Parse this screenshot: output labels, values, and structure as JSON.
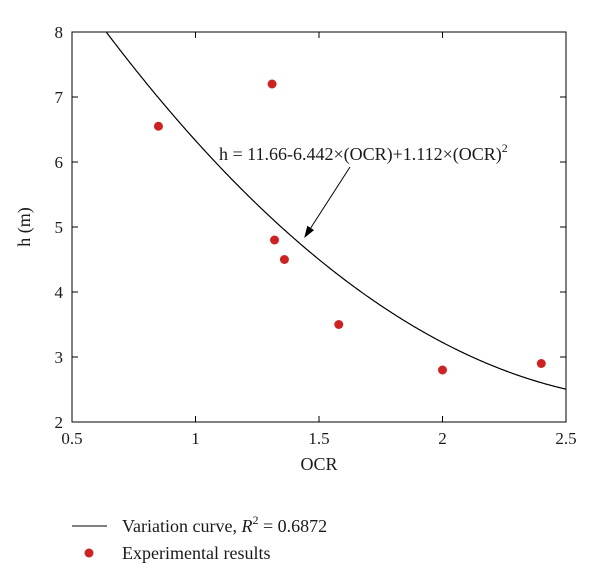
{
  "chart_data": {
    "type": "scatter",
    "xlabel": "OCR",
    "ylabel": "h (m)",
    "xlim": [
      0.5,
      2.5
    ],
    "ylim": [
      2,
      8
    ],
    "xticks": [
      0.5,
      1,
      1.5,
      2,
      2.5
    ],
    "xtick_labels": [
      "0.5",
      "1",
      "1.5",
      "2",
      "2.5"
    ],
    "yticks": [
      2,
      3,
      4,
      5,
      6,
      7,
      8
    ],
    "ytick_labels": [
      "2",
      "3",
      "4",
      "5",
      "6",
      "7",
      "8"
    ],
    "grid": false,
    "legend_position": "bottom",
    "series": [
      {
        "name": "Experimental results",
        "kind": "scatter",
        "color": "#cc2222",
        "points": [
          {
            "x": 0.85,
            "y": 6.55
          },
          {
            "x": 1.31,
            "y": 7.2
          },
          {
            "x": 1.32,
            "y": 4.8
          },
          {
            "x": 1.36,
            "y": 4.5
          },
          {
            "x": 1.58,
            "y": 3.5
          },
          {
            "x": 2.0,
            "y": 2.8
          },
          {
            "x": 2.4,
            "y": 2.9
          }
        ]
      },
      {
        "name": "Variation curve",
        "kind": "line",
        "color": "#000000",
        "equation": {
          "a": 11.66,
          "b": -6.442,
          "c": 1.112
        }
      }
    ],
    "annotation": {
      "text_main": "h = 11.66-6.442×(OCR)+1.112×(OCR)",
      "text_sup": "2",
      "arrow_target": {
        "x": 1.44,
        "y": 4.83
      }
    },
    "legend": [
      {
        "label_main": "Variation curve, ",
        "label_italic": "R",
        "label_sup": "2",
        "label_tail": " = 0.6872",
        "kind": "line"
      },
      {
        "label_main": "Experimental results",
        "kind": "marker"
      }
    ]
  }
}
